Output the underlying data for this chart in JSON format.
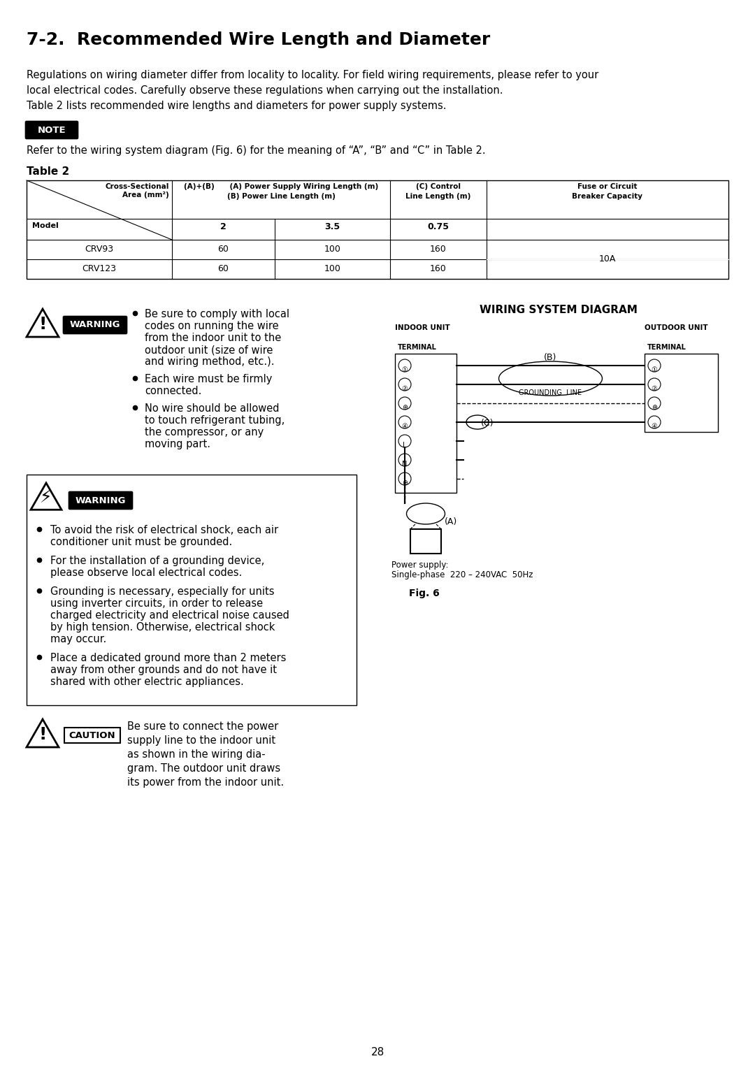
{
  "title": "7-2.  Recommended Wire Length and Diameter",
  "intro_lines": [
    "Regulations on wiring diameter differ from locality to locality. For field wiring requirements, please refer to your",
    "local electrical codes. Carefully observe these regulations when carrying out the installation.",
    "Table 2 lists recommended wire lengths and diameters for power supply systems."
  ],
  "note_text": "Refer to the wiring system diagram (Fig. 6) for the meaning of “A”, “B” and “C” in Table 2.",
  "table_label": "Table 2",
  "table_data": [
    [
      "CRV93",
      "60",
      "100",
      "160"
    ],
    [
      "CRV123",
      "60",
      "100",
      "160"
    ]
  ],
  "fuse_capacity": "10A",
  "warning1_bullets": [
    "Be sure to comply with local codes on running the wire\nfrom the indoor unit to the outdoor unit (size of wire\nand wiring method, etc.).",
    "Each wire must be firmly connected.",
    "No wire should be allowed to touch refrigerant tubing,\nthe compressor, or any moving part."
  ],
  "warning2_bullets": [
    "To avoid the risk of electrical shock, each air conditioner unit must be grounded.",
    "For the installation of a grounding device, please observe local electrical codes.",
    "Grounding is necessary, especially for units using inverter circuits, in order to release\ncharged electricity and electrical noise caused by high tension. Otherwise, electrical shock\nmay occur.",
    "Place a dedicated ground more than 2 meters away from other grounds and do not have it\nshared with other electric appliances."
  ],
  "caution_text": "Be sure to connect the power supply line to the indoor unit\nas shown in the wiring dia-\ngram. The outdoor unit draws\nits power from the indoor unit.",
  "wiring_title": "WIRING SYSTEM DIAGRAM",
  "power_supply_text": [
    "Power supply:",
    "Single-phase  220 – 240VAC  50Hz"
  ],
  "fig_label": "Fig. 6",
  "page_number": "28",
  "bg_color": "#ffffff"
}
